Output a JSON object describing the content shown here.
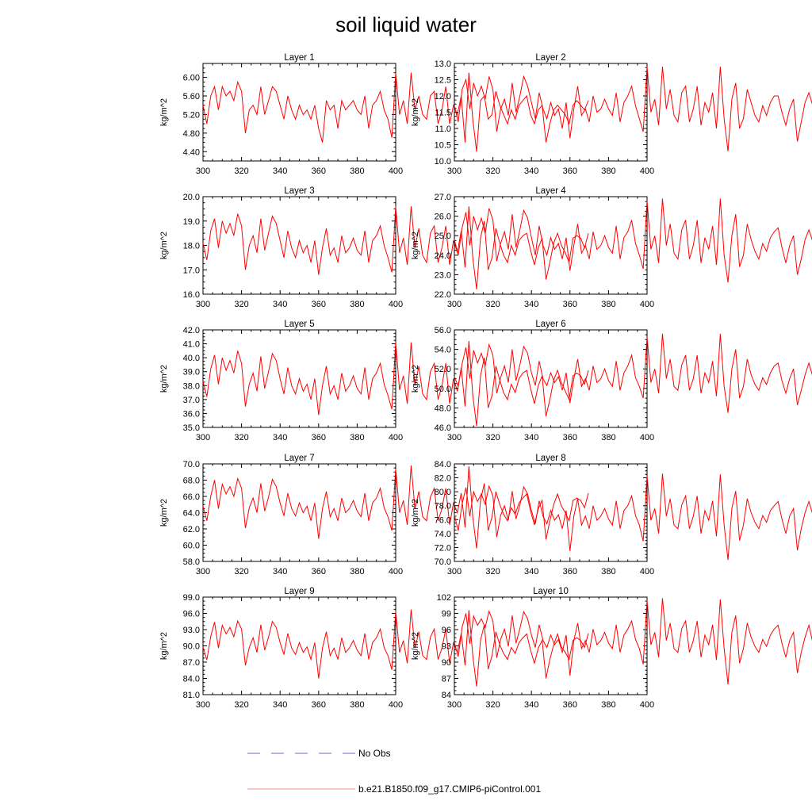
{
  "chart_data": {
    "type": "line",
    "title": "soil liquid water",
    "legend": {
      "placement": "bottom",
      "entries": [
        {
          "label": "No Obs",
          "color": "#6b6bd6",
          "style": "dashed"
        },
        {
          "label": "b.e21.B1850.f09_g17.CMIP6-piControl.001",
          "color": "#ff0000",
          "style": "solid"
        }
      ]
    },
    "x_start": 300,
    "x_step": 2,
    "xlim": [
      300,
      400
    ],
    "xticks": [
      "300",
      "320",
      "340",
      "360",
      "380",
      "400"
    ],
    "panels": [
      {
        "name": "Layer 1",
        "ylabel": "kg/m^2",
        "ylim": [
          4.2,
          6.3
        ],
        "yticks": [
          "4.40",
          "4.80",
          "5.20",
          "5.60",
          "6.00"
        ],
        "values": [
          5.4,
          5.0,
          5.6,
          5.8,
          5.3,
          5.8,
          5.6,
          5.7,
          5.5,
          5.9,
          5.7,
          4.8,
          5.3,
          5.4,
          5.2,
          5.8,
          5.2,
          5.5,
          5.8,
          5.7,
          5.4,
          5.1,
          5.6,
          5.3,
          5.1,
          5.4,
          5.2,
          5.3,
          5.1,
          5.4,
          4.9,
          4.6,
          5.5,
          5.3,
          5.4,
          4.9,
          5.5,
          5.3,
          5.4,
          5.5,
          5.3,
          5.2,
          5.6,
          4.9,
          5.4,
          5.5,
          5.7,
          5.3,
          5.1,
          4.7,
          6.1,
          5.2,
          5.5,
          5.0,
          6.1,
          5.3,
          5.6,
          5.2,
          5.1,
          5.6,
          5.7,
          5.0,
          5.3,
          5.8,
          5.0,
          5.4,
          5.2,
          5.6,
          4.6,
          6.1,
          5.1,
          4.4,
          5.5,
          5.6,
          5.1,
          5.2,
          5.7,
          5.4,
          5.2,
          5.0,
          5.3,
          5.1,
          5.4,
          5.5,
          5.6,
          5.2,
          5.0,
          5.3,
          5.4,
          4.6,
          5.0,
          5.3,
          5.4,
          5.3,
          5.2,
          5.0,
          5.4,
          5.5,
          5.4,
          5.3,
          5.5
        ]
      },
      {
        "name": "Layer 2",
        "ylabel": "kg/m^2",
        "ylim": [
          10.0,
          13.0
        ],
        "yticks": [
          "10.0",
          "10.5",
          "11.0",
          "11.5",
          "12.0",
          "12.5",
          "13.0"
        ],
        "values": [
          11.7,
          11.2,
          12.2,
          12.5,
          11.6,
          12.4,
          12.0,
          12.3,
          11.9,
          12.6,
          12.2,
          10.9,
          11.6,
          11.9,
          11.4,
          12.4,
          11.5,
          12.0,
          12.6,
          12.3,
          11.8,
          11.3,
          12.1,
          11.6,
          11.3,
          11.8,
          11.4,
          11.6,
          11.0,
          11.8,
          10.7,
          11.6,
          12.3,
          11.4,
          11.6,
          11.2,
          12.0,
          11.5,
          11.6,
          11.9,
          11.6,
          11.4,
          12.1,
          11.2,
          11.8,
          12.0,
          12.3,
          11.7,
          11.3,
          10.9,
          12.9,
          11.5,
          11.9,
          11.1,
          12.9,
          11.6,
          12.2,
          11.4,
          11.2,
          12.1,
          12.3,
          11.2,
          11.6,
          12.3,
          11.1,
          11.8,
          11.5,
          12.1,
          11.0,
          12.9,
          11.3,
          10.3,
          11.9,
          12.4,
          11.0,
          11.3,
          12.2,
          11.8,
          11.4,
          11.2,
          11.7,
          11.4,
          11.8,
          12.0,
          12.0,
          11.5,
          11.1,
          11.6,
          11.9,
          10.6,
          11.2,
          11.8,
          12.1,
          11.7,
          11.5,
          11.2,
          11.9,
          12.0,
          11.9,
          11.6,
          12.0
        ]
      },
      {
        "name": "Layer 3",
        "ylabel": "kg/m^2",
        "ylim": [
          16.0,
          20.0
        ],
        "yticks": [
          "16.0",
          "17.0",
          "18.0",
          "19.0",
          "20.0"
        ],
        "values": [
          18.1,
          17.4,
          18.6,
          19.1,
          17.9,
          19.0,
          18.5,
          18.9,
          18.4,
          19.3,
          18.8,
          17.0,
          18.0,
          18.4,
          17.7,
          19.1,
          17.8,
          18.5,
          19.2,
          18.9,
          18.2,
          17.5,
          18.6,
          17.9,
          17.5,
          18.2,
          17.7,
          18.0,
          17.3,
          18.2,
          16.8,
          17.9,
          18.7,
          17.6,
          17.9,
          17.3,
          18.4,
          17.7,
          17.9,
          18.3,
          17.8,
          17.6,
          18.6,
          17.3,
          18.2,
          18.4,
          18.8,
          18.0,
          17.5,
          16.9,
          19.6,
          17.7,
          18.3,
          17.2,
          19.6,
          17.9,
          18.7,
          17.6,
          17.3,
          18.5,
          18.8,
          17.3,
          17.9,
          18.8,
          17.2,
          18.2,
          17.7,
          18.6,
          17.1,
          19.6,
          17.5,
          16.2,
          18.3,
          19.0,
          17.0,
          17.5,
          18.7,
          18.1,
          17.6,
          17.3,
          18.0,
          17.6,
          18.2,
          18.4,
          18.5,
          17.8,
          17.2,
          17.9,
          18.3,
          16.6,
          17.3,
          18.1,
          18.5,
          18.0,
          17.7,
          17.3,
          18.3,
          18.4,
          18.3,
          17.9,
          18.5
        ]
      },
      {
        "name": "Layer 4",
        "ylabel": "kg/m^2",
        "ylim": [
          22.0,
          27.0
        ],
        "yticks": [
          "22.0",
          "23.0",
          "24.0",
          "25.0",
          "26.0",
          "27.0"
        ],
        "values": [
          24.8,
          24.0,
          25.4,
          26.2,
          24.5,
          26.0,
          25.3,
          25.9,
          25.1,
          26.4,
          25.8,
          23.7,
          24.6,
          25.2,
          24.3,
          26.1,
          24.4,
          25.3,
          26.3,
          25.9,
          24.9,
          24.0,
          25.5,
          24.5,
          24.0,
          24.9,
          24.3,
          24.6,
          23.8,
          24.9,
          23.2,
          24.5,
          25.6,
          24.1,
          24.5,
          23.8,
          25.2,
          24.3,
          24.5,
          25.0,
          24.4,
          24.1,
          25.5,
          23.8,
          24.9,
          25.2,
          25.8,
          24.6,
          24.0,
          23.3,
          26.8,
          24.3,
          25.0,
          23.6,
          26.9,
          24.5,
          25.6,
          24.1,
          23.8,
          25.3,
          25.8,
          23.8,
          24.5,
          25.8,
          23.6,
          24.9,
          24.3,
          25.5,
          23.5,
          26.9,
          24.0,
          22.6,
          25.0,
          26.1,
          23.4,
          24.0,
          25.6,
          24.8,
          24.2,
          23.8,
          24.6,
          24.2,
          24.9,
          25.2,
          25.4,
          24.4,
          23.6,
          24.5,
          25.0,
          23.0,
          23.8,
          24.8,
          25.3,
          24.7,
          24.3,
          23.8,
          25.0,
          25.2,
          25.0,
          24.6,
          25.4
        ]
      },
      {
        "name": "Layer 5",
        "ylabel": "kg/m^2",
        "ylim": [
          35.0,
          42.0
        ],
        "yticks": [
          "35.0",
          "36.0",
          "37.0",
          "38.0",
          "39.0",
          "40.0",
          "41.0",
          "42.0"
        ],
        "values": [
          38.3,
          37.2,
          39.2,
          40.2,
          38.1,
          40.0,
          39.1,
          39.8,
          38.9,
          40.5,
          39.6,
          36.5,
          38.1,
          38.9,
          37.6,
          40.1,
          37.8,
          39.0,
          40.3,
          39.8,
          38.5,
          37.4,
          39.3,
          38.0,
          37.4,
          38.5,
          37.6,
          38.1,
          37.0,
          38.5,
          35.9,
          38.0,
          39.4,
          37.4,
          38.0,
          37.0,
          38.9,
          37.6,
          38.0,
          38.7,
          37.8,
          37.4,
          39.3,
          37.0,
          38.5,
          38.9,
          39.6,
          38.1,
          37.3,
          36.3,
          41.1,
          37.7,
          38.7,
          36.7,
          41.1,
          38.0,
          39.4,
          37.4,
          37.0,
          39.0,
          39.6,
          37.0,
          38.0,
          39.6,
          36.7,
          38.5,
          37.6,
          39.3,
          36.5,
          41.2,
          37.3,
          35.1,
          38.7,
          40.0,
          36.4,
          37.3,
          39.4,
          38.4,
          37.5,
          37.0,
          38.1,
          37.5,
          38.5,
          38.9,
          39.1,
          37.8,
          36.7,
          38.0,
          38.7,
          35.8,
          37.0,
          38.4,
          39.1,
          38.2,
          37.6,
          37.0,
          38.7,
          38.9,
          38.7,
          38.1,
          39.1
        ]
      },
      {
        "name": "Layer 6",
        "ylabel": "kg/m^2",
        "ylim": [
          46.0,
          56.0
        ],
        "yticks": [
          "46.0",
          "48.0",
          "50.0",
          "52.0",
          "54.0",
          "56.0"
        ],
        "values": [
          51.2,
          50.2,
          52.5,
          54.2,
          51.0,
          53.9,
          52.6,
          53.6,
          52.3,
          54.5,
          53.4,
          49.5,
          51.1,
          52.3,
          50.6,
          54.0,
          50.8,
          52.4,
          54.3,
          53.6,
          51.6,
          50.3,
          52.8,
          51.0,
          50.3,
          51.6,
          50.6,
          51.2,
          49.8,
          51.6,
          48.5,
          51.0,
          53.0,
          50.2,
          51.0,
          49.8,
          52.3,
          50.6,
          51.0,
          52.0,
          50.8,
          50.2,
          52.8,
          49.8,
          51.6,
          52.3,
          53.4,
          51.1,
          50.2,
          49.0,
          55.3,
          50.6,
          52.0,
          49.5,
          55.6,
          51.0,
          53.0,
          50.2,
          49.8,
          52.4,
          53.4,
          49.8,
          51.0,
          53.4,
          49.5,
          51.6,
          50.6,
          52.8,
          49.2,
          55.6,
          50.2,
          47.5,
          52.0,
          54.0,
          49.0,
          50.2,
          53.0,
          51.4,
          50.4,
          49.8,
          51.1,
          50.4,
          51.6,
          52.3,
          52.6,
          50.8,
          49.5,
          51.0,
          52.0,
          48.3,
          49.8,
          51.4,
          52.6,
          51.2,
          50.6,
          49.8,
          52.0,
          52.3,
          52.0,
          51.1,
          52.8
        ]
      },
      {
        "name": "Layer 7",
        "ylabel": "kg/m^2",
        "ylim": [
          58.0,
          70.0
        ],
        "yticks": [
          "58.0",
          "60.0",
          "62.0",
          "64.0",
          "66.0",
          "68.0",
          "70.0"
        ],
        "values": [
          64.8,
          63.0,
          66.0,
          68.0,
          64.5,
          67.5,
          66.3,
          67.2,
          66.0,
          68.2,
          67.0,
          62.1,
          64.6,
          65.8,
          64.0,
          67.6,
          64.2,
          65.9,
          68.1,
          67.2,
          65.2,
          63.6,
          66.4,
          64.5,
          63.6,
          65.2,
          64.0,
          64.8,
          63.0,
          65.2,
          60.8,
          64.5,
          66.6,
          63.5,
          64.5,
          63.0,
          65.8,
          64.0,
          64.5,
          65.5,
          64.2,
          63.5,
          66.4,
          63.0,
          65.2,
          65.8,
          67.0,
          64.6,
          63.5,
          61.8,
          69.4,
          64.0,
          65.5,
          62.5,
          69.8,
          64.5,
          66.6,
          63.5,
          63.0,
          65.9,
          67.0,
          63.0,
          64.5,
          67.0,
          62.5,
          65.2,
          64.0,
          66.4,
          62.2,
          69.7,
          63.5,
          59.6,
          65.5,
          67.6,
          61.8,
          63.5,
          66.6,
          65.0,
          63.8,
          63.0,
          64.6,
          63.8,
          65.2,
          65.8,
          66.3,
          64.2,
          62.5,
          64.5,
          65.5,
          60.7,
          63.0,
          65.0,
          66.3,
          64.8,
          64.0,
          63.0,
          65.5,
          65.8,
          65.5,
          64.6,
          66.4
        ]
      },
      {
        "name": "Layer 8",
        "ylabel": "kg/m^2",
        "ylim": [
          70.0,
          84.0
        ],
        "yticks": [
          "70.0",
          "72.0",
          "74.0",
          "76.0",
          "78.0",
          "80.0",
          "82.0",
          "84.0"
        ],
        "values": [
          76.7,
          74.4,
          78.2,
          80.6,
          76.5,
          80.0,
          78.6,
          79.7,
          78.2,
          80.8,
          79.4,
          73.5,
          76.6,
          78.0,
          75.9,
          80.1,
          76.1,
          78.1,
          80.7,
          79.7,
          77.3,
          75.4,
          78.7,
          76.5,
          75.4,
          77.3,
          75.9,
          76.7,
          74.7,
          77.3,
          71.5,
          76.5,
          79.0,
          75.2,
          76.5,
          74.7,
          78.0,
          75.9,
          76.5,
          77.6,
          76.1,
          75.2,
          78.7,
          74.7,
          77.3,
          78.0,
          79.4,
          76.6,
          75.2,
          72.9,
          82.3,
          75.9,
          77.6,
          74.0,
          82.6,
          76.5,
          79.0,
          75.2,
          74.7,
          78.1,
          79.4,
          74.7,
          76.5,
          79.4,
          74.0,
          77.3,
          75.9,
          78.7,
          73.6,
          82.5,
          75.2,
          70.2,
          77.6,
          80.1,
          73.0,
          75.2,
          79.0,
          77.0,
          75.6,
          74.7,
          76.6,
          75.6,
          77.3,
          78.0,
          78.6,
          76.1,
          74.0,
          76.5,
          77.6,
          71.6,
          74.7,
          77.0,
          78.6,
          76.7,
          75.9,
          74.7,
          77.6,
          78.0,
          77.6,
          76.6,
          78.7
        ]
      },
      {
        "name": "Layer 9",
        "ylabel": "kg/m^2",
        "ylim": [
          81.0,
          99.0
        ],
        "yticks": [
          "81.0",
          "84.0",
          "87.0",
          "90.0",
          "93.0",
          "96.0",
          "99.0"
        ],
        "values": [
          89.8,
          87.4,
          91.7,
          94.4,
          89.6,
          93.8,
          92.2,
          93.4,
          91.7,
          94.6,
          93.1,
          86.4,
          89.7,
          91.5,
          88.8,
          93.9,
          89.2,
          91.6,
          94.5,
          93.4,
          90.6,
          88.4,
          92.3,
          89.6,
          88.4,
          90.6,
          88.8,
          89.8,
          87.5,
          90.6,
          84.0,
          89.6,
          92.6,
          88.2,
          89.6,
          87.5,
          91.5,
          88.8,
          89.6,
          91.0,
          89.2,
          88.2,
          92.3,
          87.5,
          90.6,
          91.5,
          93.1,
          89.7,
          88.2,
          85.6,
          96.4,
          88.8,
          91.0,
          86.8,
          96.7,
          89.6,
          92.6,
          88.2,
          87.5,
          91.6,
          93.1,
          87.5,
          89.6,
          93.1,
          86.8,
          90.6,
          88.8,
          92.3,
          86.4,
          96.6,
          88.2,
          82.5,
          91.0,
          93.9,
          85.7,
          88.2,
          92.6,
          90.2,
          88.6,
          87.5,
          89.7,
          88.6,
          90.6,
          91.5,
          92.2,
          89.2,
          86.8,
          89.6,
          91.0,
          84.0,
          87.5,
          90.2,
          92.2,
          89.8,
          88.8,
          87.5,
          91.0,
          91.5,
          91.0,
          89.7,
          92.3
        ]
      },
      {
        "name": "Layer 10",
        "ylabel": "kg/m^2",
        "ylim": [
          84,
          102
        ],
        "yticks": [
          "84",
          "87",
          "90",
          "93",
          "96",
          "99",
          "102"
        ],
        "values": [
          93.6,
          91.0,
          96.4,
          99.0,
          93.4,
          98.5,
          96.8,
          98.0,
          96.4,
          99.4,
          97.6,
          90.8,
          94.2,
          96.1,
          92.9,
          98.6,
          93.5,
          96.2,
          99.3,
          98.0,
          95.0,
          92.7,
          96.9,
          94.0,
          92.7,
          95.0,
          93.2,
          94.2,
          91.8,
          95.0,
          87.5,
          94.0,
          97.2,
          92.5,
          94.0,
          91.8,
          96.1,
          93.2,
          94.0,
          95.5,
          93.5,
          92.5,
          96.9,
          91.8,
          95.0,
          96.1,
          97.6,
          94.2,
          92.5,
          89.6,
          101.4,
          93.2,
          95.5,
          90.9,
          101.8,
          94.0,
          97.2,
          92.5,
          91.8,
          96.2,
          97.6,
          91.8,
          94.0,
          97.6,
          90.9,
          95.0,
          93.2,
          96.9,
          90.4,
          101.6,
          92.5,
          85.9,
          95.5,
          98.6,
          89.8,
          92.5,
          97.2,
          94.6,
          92.9,
          91.8,
          94.2,
          92.9,
          95.0,
          96.1,
          96.8,
          93.5,
          90.9,
          94.0,
          95.5,
          88.0,
          91.8,
          94.6,
          96.8,
          93.6,
          93.2,
          91.8,
          95.5,
          96.1,
          95.5,
          94.2,
          96.9
        ]
      }
    ]
  }
}
